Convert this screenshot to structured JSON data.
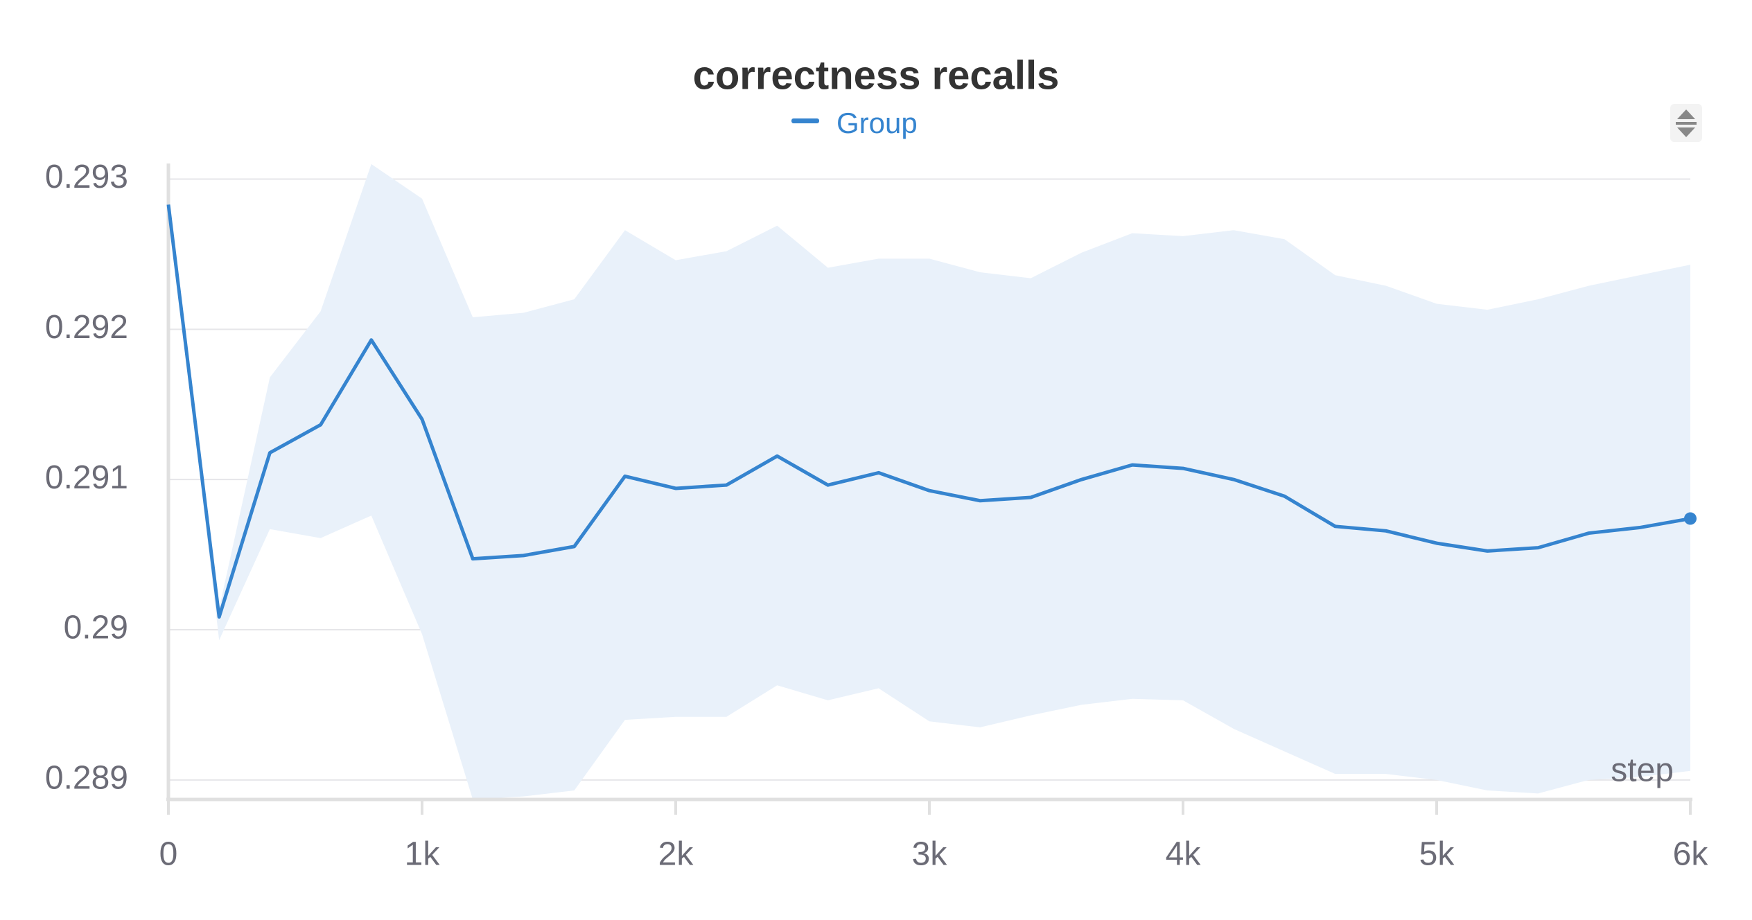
{
  "chart_data": {
    "type": "line",
    "title": "correctness recalls",
    "x_label": "step",
    "x": [
      0,
      200,
      400,
      600,
      800,
      1000,
      1200,
      1400,
      1600,
      1800,
      2000,
      2200,
      2400,
      2600,
      2800,
      3000,
      3200,
      3400,
      3600,
      3800,
      4000,
      4200,
      4400,
      4600,
      4800,
      5000,
      5200,
      5400,
      5600,
      5800,
      6000
    ],
    "series": [
      {
        "name": "Group",
        "color": "#3584cf",
        "band_color": "#e9f1fa",
        "values": [
          0.29283,
          0.290085,
          0.291178,
          0.291364,
          0.291929,
          0.291401,
          0.290472,
          0.290494,
          0.290554,
          0.291022,
          0.290941,
          0.290963,
          0.291156,
          0.290963,
          0.291045,
          0.290926,
          0.290859,
          0.290881,
          0.291,
          0.291097,
          0.291074,
          0.291,
          0.290889,
          0.290688,
          0.290658,
          0.290576,
          0.290524,
          0.290546,
          0.290643,
          0.29068,
          0.29074
        ],
        "upper": [
          0.29283,
          0.29014,
          0.29168,
          0.29212,
          0.2931,
          0.29287,
          0.29208,
          0.29211,
          0.2922,
          0.29266,
          0.29246,
          0.29252,
          0.29269,
          0.29241,
          0.29247,
          0.29247,
          0.29238,
          0.29234,
          0.29251,
          0.29264,
          0.29262,
          0.29266,
          0.2926,
          0.29236,
          0.29229,
          0.29217,
          0.29213,
          0.2922,
          0.29229,
          0.29236,
          0.29243
        ],
        "lower": [
          0.29283,
          0.28993,
          0.29067,
          0.29061,
          0.29076,
          0.28997,
          0.28887,
          0.28889,
          0.28893,
          0.2894,
          0.28942,
          0.28942,
          0.28963,
          0.28953,
          0.28961,
          0.28939,
          0.28935,
          0.28943,
          0.2895,
          0.28954,
          0.28953,
          0.28934,
          0.28919,
          0.28904,
          0.28904,
          0.289,
          0.28893,
          0.28891,
          0.289,
          0.28902,
          0.28906
        ]
      }
    ],
    "xlim": [
      0,
      6000
    ],
    "xticks": [
      0,
      {
        "value": 1000,
        "label": "1k"
      },
      {
        "value": 2000,
        "label": "2k"
      },
      {
        "value": 3000,
        "label": "3k"
      },
      {
        "value": 4000,
        "label": "4k"
      },
      {
        "value": 5000,
        "label": "5k"
      },
      {
        "value": 6000,
        "label": "6k"
      }
    ],
    "ylim": [
      0.28887,
      0.29309
    ],
    "yticks": [
      0.289,
      0.29,
      0.291,
      0.292,
      0.293
    ],
    "grid": true
  }
}
